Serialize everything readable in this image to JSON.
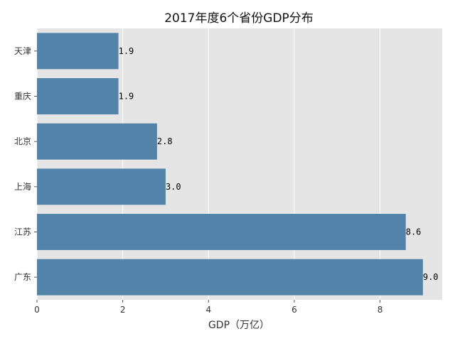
{
  "chart_data": {
    "type": "bar",
    "orientation": "horizontal",
    "title": "2017年度6个省份GDP分布",
    "xlabel": "GDP（万亿）",
    "ylabel": "",
    "categories": [
      "天津",
      "重庆",
      "北京",
      "上海",
      "江苏",
      "广东"
    ],
    "values": [
      1.9,
      1.9,
      2.8,
      3.0,
      8.6,
      9.0
    ],
    "value_labels": [
      "1.9",
      "1.9",
      "2.8",
      "3.0",
      "8.6",
      "9.0"
    ],
    "xlim": [
      0,
      9.45
    ],
    "xticks": [
      0,
      2,
      4,
      6,
      8
    ],
    "xtick_labels": [
      "0",
      "2",
      "4",
      "6",
      "8"
    ],
    "grid": true,
    "bar_color": "#5283A8",
    "background_color": "#E5E5E5"
  }
}
